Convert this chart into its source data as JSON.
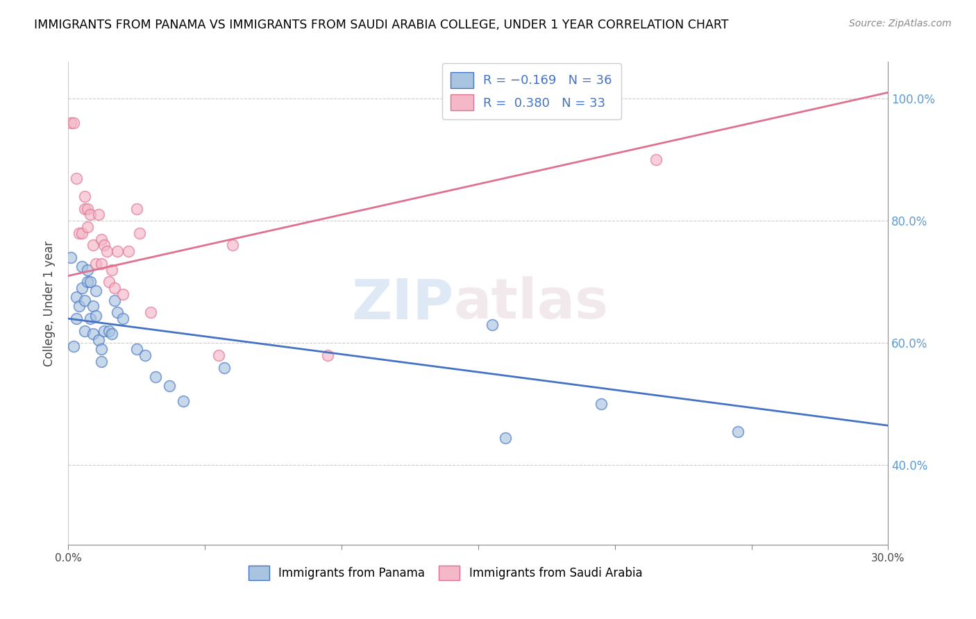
{
  "title": "IMMIGRANTS FROM PANAMA VS IMMIGRANTS FROM SAUDI ARABIA COLLEGE, UNDER 1 YEAR CORRELATION CHART",
  "source": "Source: ZipAtlas.com",
  "ylabel": "College, Under 1 year",
  "xlim": [
    0.0,
    0.3
  ],
  "ylim": [
    0.27,
    1.06
  ],
  "xtick_positions": [
    0.0,
    0.05,
    0.1,
    0.15,
    0.2,
    0.25,
    0.3
  ],
  "xtick_labels": [
    "0.0%",
    "",
    "",
    "",
    "",
    "",
    "30.0%"
  ],
  "ytick_positions": [
    0.4,
    0.6,
    0.8,
    1.0
  ],
  "ytick_right_labels": [
    "40.0%",
    "60.0%",
    "80.0%",
    "100.0%"
  ],
  "color_panama": "#a8c4e0",
  "color_saudi": "#f4b8c8",
  "color_line_panama": "#4472c4",
  "color_line_saudi": "#e07090",
  "watermark_zip": "ZIP",
  "watermark_atlas": "atlas",
  "panama_x": [
    0.001,
    0.002,
    0.003,
    0.003,
    0.004,
    0.005,
    0.005,
    0.006,
    0.006,
    0.007,
    0.007,
    0.008,
    0.008,
    0.009,
    0.009,
    0.01,
    0.01,
    0.011,
    0.012,
    0.012,
    0.013,
    0.015,
    0.016,
    0.017,
    0.018,
    0.02,
    0.025,
    0.028,
    0.032,
    0.037,
    0.042,
    0.057,
    0.155,
    0.16,
    0.195,
    0.245
  ],
  "panama_y": [
    0.74,
    0.595,
    0.64,
    0.675,
    0.66,
    0.725,
    0.69,
    0.67,
    0.62,
    0.72,
    0.7,
    0.64,
    0.7,
    0.66,
    0.615,
    0.685,
    0.645,
    0.605,
    0.57,
    0.59,
    0.62,
    0.62,
    0.615,
    0.67,
    0.65,
    0.64,
    0.59,
    0.58,
    0.545,
    0.53,
    0.505,
    0.56,
    0.63,
    0.445,
    0.5,
    0.455
  ],
  "saudi_x": [
    0.001,
    0.002,
    0.003,
    0.004,
    0.005,
    0.006,
    0.006,
    0.007,
    0.007,
    0.008,
    0.009,
    0.01,
    0.011,
    0.012,
    0.012,
    0.013,
    0.014,
    0.015,
    0.016,
    0.017,
    0.018,
    0.02,
    0.022,
    0.025,
    0.026,
    0.03,
    0.055,
    0.06,
    0.095,
    0.215
  ],
  "saudi_y": [
    0.96,
    0.96,
    0.87,
    0.78,
    0.78,
    0.84,
    0.82,
    0.79,
    0.82,
    0.81,
    0.76,
    0.73,
    0.81,
    0.77,
    0.73,
    0.76,
    0.75,
    0.7,
    0.72,
    0.69,
    0.75,
    0.68,
    0.75,
    0.82,
    0.78,
    0.65,
    0.58,
    0.76,
    0.58,
    0.9
  ],
  "panama_trendline_x": [
    0.0,
    0.3
  ],
  "panama_trendline_y": [
    0.64,
    0.465
  ],
  "saudi_trendline_x": [
    0.0,
    0.3
  ],
  "saudi_trendline_y": [
    0.71,
    1.01
  ]
}
